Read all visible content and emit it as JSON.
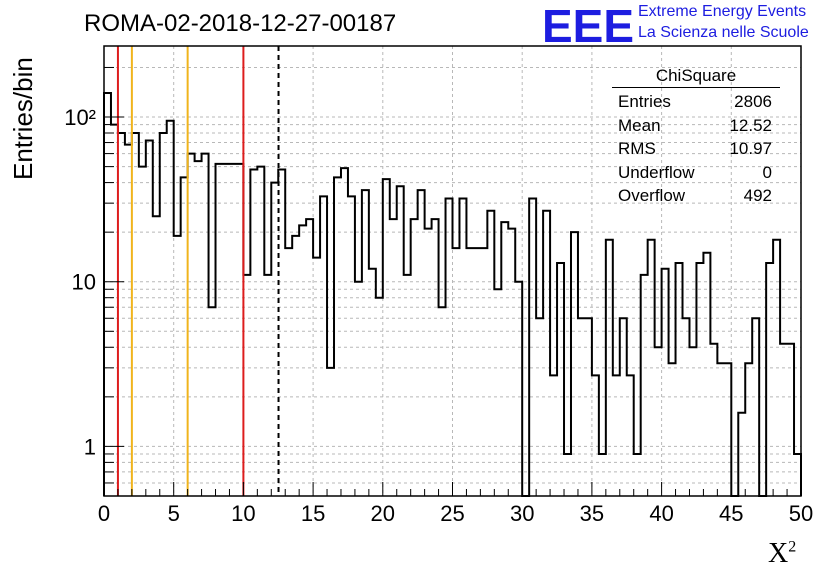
{
  "header": {
    "title": "ROMA-02-2018-12-27-00187",
    "logo_text": "EEE",
    "logo_line1": "Extreme Energy Events",
    "logo_line2": "La Scienza nelle Scuole"
  },
  "stats_box": {
    "title": "ChiSquare",
    "rows": [
      {
        "label": "Entries",
        "value": "2806"
      },
      {
        "label": "Mean",
        "value": "12.52"
      },
      {
        "label": "RMS",
        "value": "10.97"
      },
      {
        "label": "Underflow",
        "value": "0"
      },
      {
        "label": "Overflow",
        "value": "492"
      }
    ]
  },
  "chart_data": {
    "type": "histogram",
    "xlabel": "X",
    "xlabel_superscript": "2",
    "ylabel": "Entries/bin",
    "xlim": [
      0,
      50
    ],
    "ylim": [
      0.5,
      270
    ],
    "yscale": "log",
    "grid": true,
    "bin_width": 0.5,
    "x_ticks": [
      0,
      5,
      10,
      15,
      20,
      25,
      30,
      35,
      40,
      45,
      50
    ],
    "x_tick_labels": [
      "0",
      "5",
      "10",
      "15",
      "20",
      "25",
      "30",
      "35",
      "40",
      "45",
      "50"
    ],
    "y_ticks": [
      1,
      10,
      100
    ],
    "y_tick_labels": [
      "1",
      "10",
      "10²"
    ],
    "bin_edges_start": 0,
    "counts": [
      140,
      90,
      80,
      68,
      80,
      50,
      72,
      25,
      80,
      95,
      19,
      43,
      60,
      54,
      60,
      7,
      52,
      52,
      52,
      52,
      11,
      48,
      50,
      11,
      40,
      48,
      16,
      19,
      22,
      24,
      14,
      33,
      3,
      43,
      49,
      33,
      10,
      36,
      12,
      8,
      42,
      24,
      38,
      11,
      24,
      36,
      21,
      24,
      7,
      32,
      16,
      32,
      16,
      16,
      16,
      27,
      9,
      23,
      21,
      10,
      0.4,
      32,
      6,
      27,
      2.7,
      13,
      0.9,
      20,
      6,
      6,
      2.7,
      0.9,
      18,
      2.7,
      6,
      2.7,
      0.9,
      11,
      18,
      4,
      12,
      3.2,
      13,
      6,
      4,
      13,
      15,
      4.2,
      3.2,
      3.2,
      0.4,
      1.6,
      3.2,
      6,
      0.4,
      13,
      18,
      4.2,
      4.2,
      0.9
    ],
    "reference_lines": [
      {
        "x": 1,
        "color": "#dd1d1d",
        "style": "solid"
      },
      {
        "x": 2,
        "color": "#f0b41c",
        "style": "solid"
      },
      {
        "x": 6,
        "color": "#f0b41c",
        "style": "solid"
      },
      {
        "x": 10,
        "color": "#dd1d1d",
        "style": "solid"
      },
      {
        "x": 12.52,
        "color": "#000000",
        "style": "dashed"
      }
    ]
  },
  "colors": {
    "histogram": "#000000",
    "grid": "#b8b8b8",
    "logo": "#1d1de0"
  }
}
